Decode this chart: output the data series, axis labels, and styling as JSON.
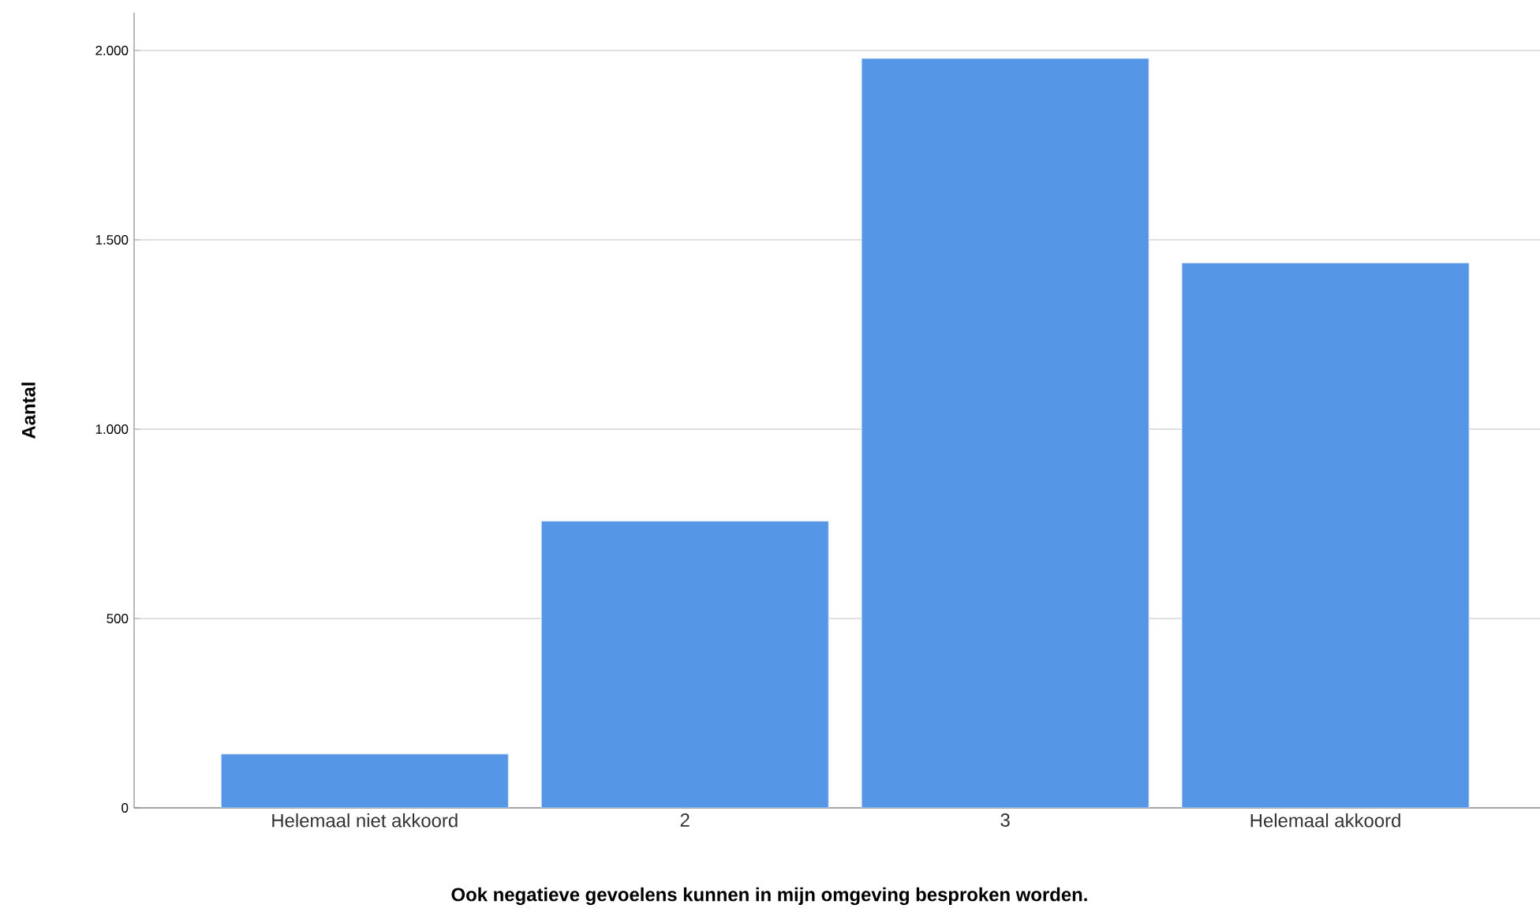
{
  "chart_data": {
    "type": "bar",
    "xlabel": "Ook negatieve gevoelens kunnen in mijn omgeving besproken worden.",
    "ylabel": "Aantal",
    "categories": [
      "Helemaal niet akkoord",
      "2",
      "3",
      "Helemaal akkoord"
    ],
    "values": [
      142,
      757,
      1979,
      1439
    ],
    "color": "#5596e6",
    "ylim": [
      0,
      2100
    ],
    "yticks": [
      0,
      500,
      {
        "value": 1000,
        "label": "1.000"
      },
      {
        "value": 1500,
        "label": "1.500"
      },
      {
        "value": 2000,
        "label": "2.000"
      }
    ],
    "grid": "y"
  }
}
